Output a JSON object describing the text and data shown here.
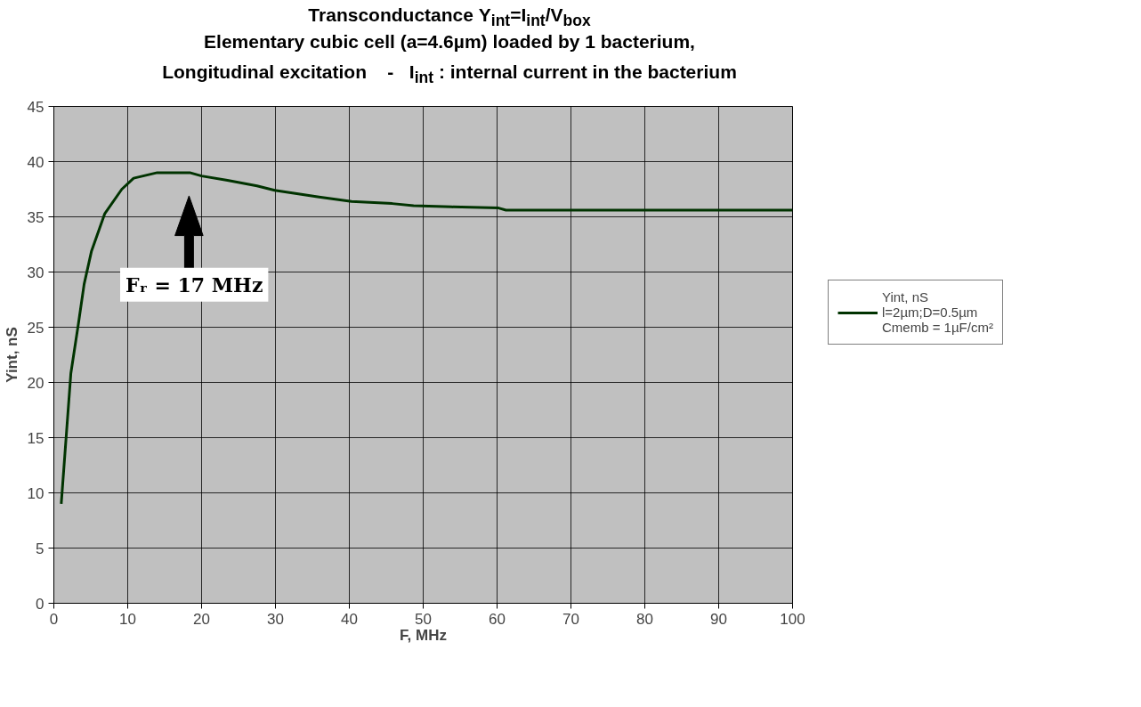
{
  "chart_data": {
    "type": "line",
    "title": "Transconductance Y$_{int}$=I$_{int}$/V$_{box}$",
    "subtitle": "Elementary cubic cell (a=4.6µm) loaded by 1 bacterium,\nLongitudinal excitation    -   I$_{int}$ : internal current in the bacterium",
    "xlabel": "F, MHz",
    "ylabel": "Yint, nS",
    "x": [
      1,
      2.3,
      3.3,
      4.1,
      5.1,
      6.9,
      9.2,
      10.8,
      14,
      18.4,
      20,
      23.5,
      27.5,
      29.9,
      32.9,
      35.9,
      40.3,
      45.8,
      48.7,
      53.8,
      60.2,
      61.2,
      70,
      80,
      90,
      100
    ],
    "series": [
      {
        "name": "Yint, nS\nl=2µm;D=0.5µm\nCmemb = 1µF/cm²",
        "color": "#003300",
        "values": [
          9,
          20.8,
          25.2,
          28.9,
          31.9,
          35.3,
          37.5,
          38.5,
          39.0,
          39.0,
          38.7,
          38.3,
          37.8,
          37.4,
          37.1,
          36.8,
          36.4,
          36.2,
          36.0,
          35.9,
          35.8,
          35.6,
          35.6,
          35.6,
          35.6,
          35.6
        ]
      }
    ],
    "xlim": [
      0,
      100
    ],
    "xticks": [
      0,
      10,
      20,
      30,
      40,
      50,
      60,
      70,
      80,
      90,
      100
    ],
    "ylim": [
      0,
      45
    ],
    "yticks": [
      0,
      5,
      10,
      15,
      20,
      25,
      30,
      35,
      40,
      45
    ],
    "grid": true,
    "legend": "right",
    "marker": "none",
    "line_style": "solid",
    "annotations": [
      "Fᵣ = 17 MHz"
    ]
  }
}
